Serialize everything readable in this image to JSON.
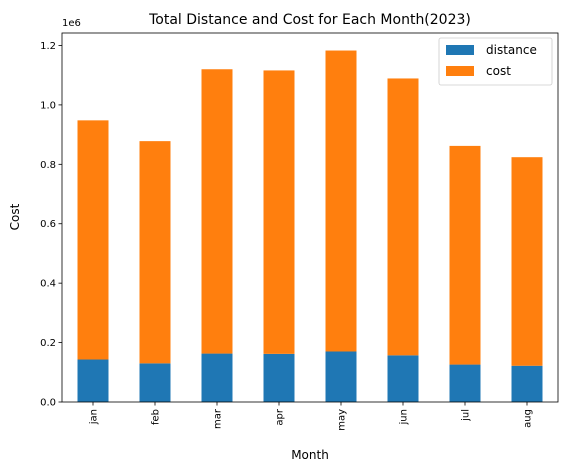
{
  "chart_data": {
    "type": "bar",
    "stacked": true,
    "title": "Total Distance and Cost for Each Month(2023)",
    "xlabel": "Month",
    "ylabel": "Cost",
    "y_offset_label": "1e6",
    "categories": [
      "jan",
      "feb",
      "mar",
      "apr",
      "may",
      "jun",
      "jul",
      "aug"
    ],
    "series": [
      {
        "name": "distance",
        "color": "#1f77b4",
        "values": [
          143000,
          130000,
          163000,
          162000,
          170000,
          157000,
          126000,
          122000
        ]
      },
      {
        "name": "cost",
        "color": "#ff7f0e",
        "values": [
          805000,
          748000,
          957000,
          954000,
          1013000,
          932000,
          736000,
          702000
        ]
      }
    ],
    "ylim": [
      0,
      1242000
    ],
    "yticks": [
      0.0,
      0.2,
      0.4,
      0.6,
      0.8,
      1.0,
      1.2
    ],
    "ytick_labels": [
      "0.0",
      "0.2",
      "0.4",
      "0.6",
      "0.8",
      "1.0",
      "1.2"
    ],
    "legend_position": "upper-right",
    "grid": false
  }
}
